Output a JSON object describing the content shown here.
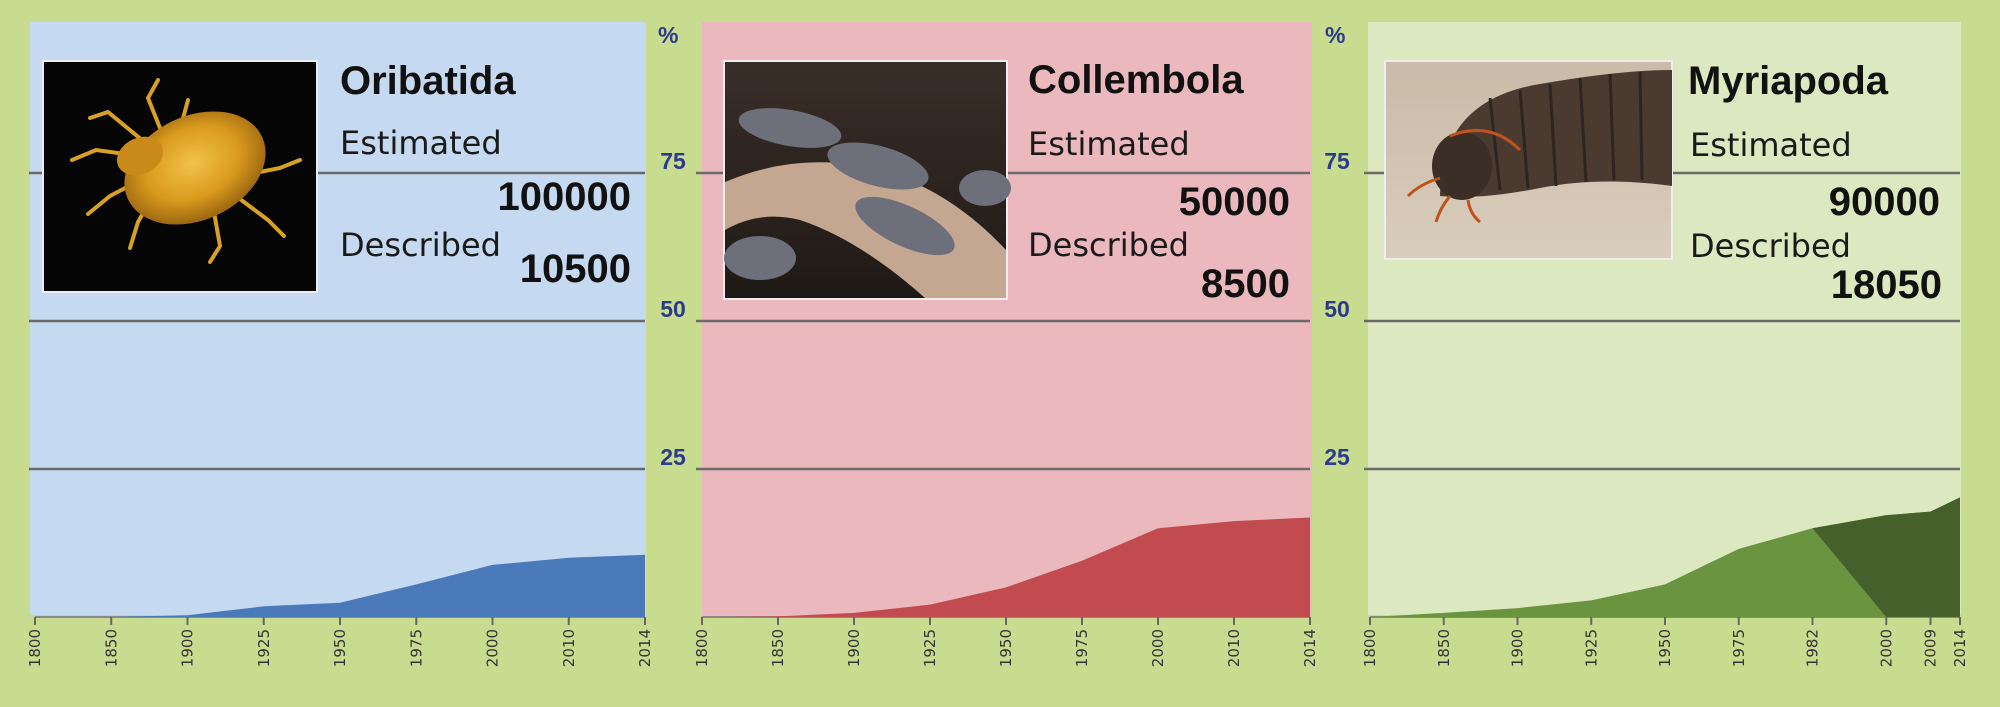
{
  "y_axis_unit": "%",
  "colors": {
    "background": "#c8dc90",
    "axis_text": "#2c3a8c",
    "grid": "#6a6a6a"
  },
  "chart_data": [
    {
      "type": "area",
      "title": "Oribatida",
      "estimated_label": "Estimated",
      "estimated_value": "100000",
      "described_label": "Described",
      "described_value": "10500",
      "image": "mite-photo",
      "panel_color": "#c5d9f0",
      "fill_color": "#4a7ab9",
      "x_labels": [
        "1800",
        "1850",
        "1900",
        "1925",
        "1950",
        "1975",
        "2000",
        "2010",
        "2014"
      ],
      "ylim": [
        0,
        100
      ],
      "y_ticks": [
        "25",
        "50",
        "75"
      ],
      "series": [
        {
          "x": [
            "1800",
            "1850",
            "1900",
            "1925",
            "1950",
            "1975",
            "2000",
            "2010",
            "2014"
          ],
          "values": [
            0,
            0,
            0.3,
            1.8,
            2.4,
            5.5,
            8.8,
            10,
            10.5
          ]
        }
      ]
    },
    {
      "type": "area",
      "title": "Collembola",
      "estimated_label": "Estimated",
      "estimated_value": "50000",
      "described_label": "Described",
      "described_value": "8500",
      "image": "springtail-photo",
      "panel_color": "#ebb8bd",
      "fill_color": "#c24b50",
      "x_labels": [
        "1800",
        "1850",
        "1900",
        "1925",
        "1950",
        "1975",
        "2000",
        "2010",
        "2014"
      ],
      "ylim": [
        0,
        100
      ],
      "y_ticks": [
        "25",
        "50",
        "75"
      ],
      "series": [
        {
          "x": [
            "1800",
            "1850",
            "1900",
            "1925",
            "1950",
            "1975",
            "2000",
            "2010",
            "2014"
          ],
          "values": [
            0,
            0.1,
            0.7,
            2.1,
            5,
            9.5,
            15,
            16.2,
            16.8
          ]
        }
      ]
    },
    {
      "type": "area",
      "title": "Myriapoda",
      "estimated_label": "Estimated",
      "estimated_value": "90000",
      "described_label": "Described",
      "described_value": "18050",
      "image": "millipede-photo",
      "panel_color": "#dce8c0",
      "fill_color": "#6b9440",
      "overlay_color": "#45602a",
      "x_labels": [
        "1800",
        "1850",
        "1900",
        "1925",
        "1950",
        "1975",
        "1982",
        "2000",
        "2009",
        "2014"
      ],
      "ylim": [
        0,
        100
      ],
      "y_ticks": [
        "25",
        "50",
        "75"
      ],
      "series": [
        {
          "x": [
            "1800",
            "1850",
            "1900",
            "1925",
            "1950",
            "1975",
            "1982",
            "2000",
            "2009",
            "2014"
          ],
          "values": [
            0,
            0.7,
            1.5,
            2.8,
            5.5,
            11.5,
            15,
            17.2,
            17.8,
            20.2
          ]
        },
        {
          "x": [
            "1982",
            "2000",
            "2009",
            "2014"
          ],
          "values": [
            15,
            0,
            0,
            0
          ]
        }
      ]
    }
  ]
}
